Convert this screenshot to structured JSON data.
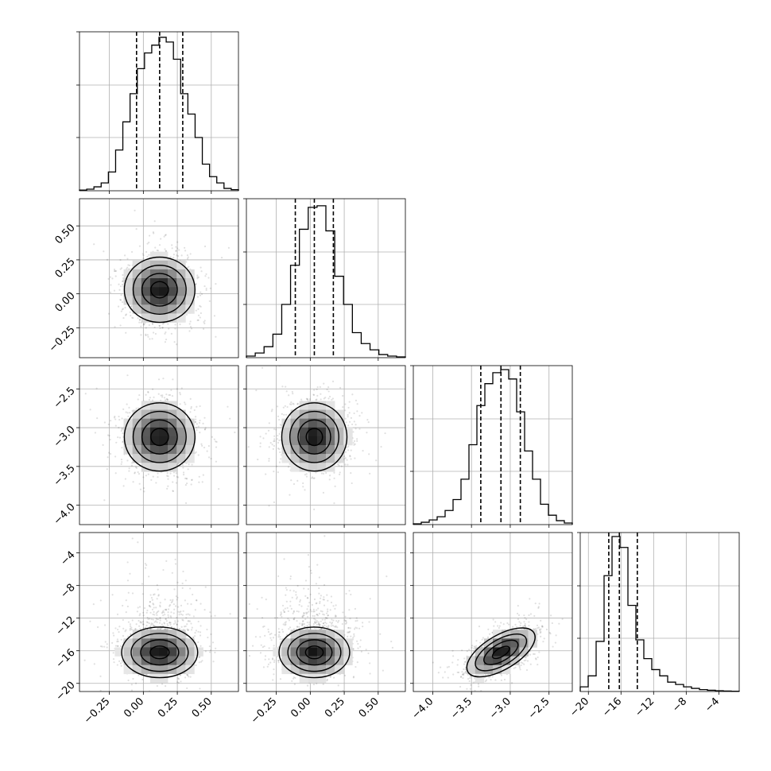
{
  "chart_data": {
    "type": "corner",
    "parameters": [
      {
        "name": "",
        "range": [
          -0.47,
          0.7
        ],
        "ticks": [
          -0.25,
          0.0,
          0.25,
          0.5
        ],
        "tick_labels": [
          "−0.25",
          "0.00",
          "0.25",
          "0.50"
        ],
        "quantiles": [
          -0.05,
          0.12,
          0.29
        ],
        "histogram": [
          0.004,
          0.01,
          0.025,
          0.05,
          0.12,
          0.26,
          0.44,
          0.62,
          0.78,
          0.88,
          0.93,
          0.98,
          0.95,
          0.84,
          0.62,
          0.49,
          0.34,
          0.17,
          0.09,
          0.05,
          0.015,
          0.007
        ]
      },
      {
        "name": "",
        "range": [
          -0.47,
          0.7
        ],
        "ticks": [
          -0.25,
          0.0,
          0.25,
          0.5
        ],
        "tick_labels": [
          "−0.25",
          "0.00",
          "0.25",
          "0.50"
        ],
        "quantiles": [
          -0.11,
          0.03,
          0.17
        ],
        "histogram": [
          0.01,
          0.03,
          0.07,
          0.15,
          0.34,
          0.59,
          0.82,
          0.96,
          0.97,
          0.81,
          0.52,
          0.34,
          0.16,
          0.09,
          0.05,
          0.02,
          0.01,
          0.005
        ]
      },
      {
        "name": "",
        "range": [
          -4.25,
          -2.2
        ],
        "ticks": [
          -4.0,
          -3.5,
          -3.0,
          -2.5
        ],
        "tick_labels": [
          "−4.0",
          "−3.5",
          "−3.0",
          "−2.5"
        ],
        "quantiles": [
          -3.38,
          -3.12,
          -2.87
        ],
        "histogram": [
          0.005,
          0.015,
          0.03,
          0.05,
          0.09,
          0.16,
          0.29,
          0.51,
          0.76,
          0.9,
          0.97,
          0.99,
          0.93,
          0.72,
          0.47,
          0.29,
          0.13,
          0.06,
          0.025,
          0.01
        ]
      },
      {
        "name": "",
        "range": [
          -21,
          -1.5
        ],
        "ticks": [
          -20,
          -16,
          -12,
          -8,
          -4
        ],
        "tick_labels": [
          "−20",
          "−16",
          "−12",
          "−8",
          "−4"
        ],
        "quantiles": [
          -17.5,
          -16.2,
          -14.0
        ],
        "histogram": [
          0.03,
          0.1,
          0.32,
          0.74,
          0.99,
          0.92,
          0.55,
          0.33,
          0.21,
          0.14,
          0.1,
          0.06,
          0.045,
          0.03,
          0.02,
          0.012,
          0.008,
          0.005,
          0.003,
          0.002
        ]
      }
    ],
    "y_ticks_by_row": [
      null,
      {
        "ticks": [
          -0.25,
          0.0,
          0.25,
          0.5
        ],
        "labels": [
          "−0.25",
          "0.00",
          "0.25",
          "0.50"
        ]
      },
      {
        "ticks": [
          -4.0,
          -3.5,
          -3.0,
          -2.5
        ],
        "labels": [
          "−4.0",
          "−3.5",
          "−3.0",
          "−2.5"
        ]
      },
      {
        "ticks": [
          -20,
          -16,
          -12,
          -8,
          -4
        ],
        "labels": [
          "−20",
          "−16",
          "−12",
          "−8",
          "−4"
        ]
      }
    ],
    "pair_stats": [
      {
        "row": 1,
        "col": 0,
        "mean": [
          0.12,
          0.03
        ],
        "sd": [
          0.13,
          0.12
        ],
        "corr": 0.0
      },
      {
        "row": 2,
        "col": 0,
        "mean": [
          0.12,
          -3.12
        ],
        "sd": [
          0.13,
          0.22
        ],
        "corr": 0.0
      },
      {
        "row": 2,
        "col": 1,
        "mean": [
          0.03,
          -3.12
        ],
        "sd": [
          0.12,
          0.22
        ],
        "corr": 0.0
      },
      {
        "row": 3,
        "col": 0,
        "mean": [
          0.12,
          -16.2
        ],
        "sd": [
          0.14,
          1.55
        ],
        "corr": 0.0
      },
      {
        "row": 3,
        "col": 1,
        "mean": [
          0.03,
          -16.2
        ],
        "sd": [
          0.13,
          1.55
        ],
        "corr": 0.0
      },
      {
        "row": 3,
        "col": 2,
        "mean": [
          -3.12,
          -16.2
        ],
        "sd": [
          0.22,
          1.5
        ],
        "corr": 0.62
      }
    ],
    "grid": true,
    "title": ""
  }
}
